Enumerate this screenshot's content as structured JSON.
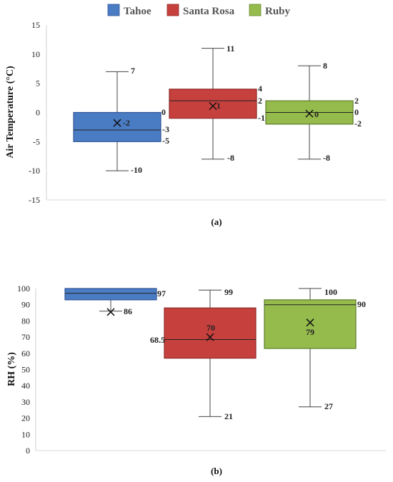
{
  "legend": [
    {
      "label": "Tahoe",
      "color": "#4a7cc4"
    },
    {
      "label": "Santa Rosa",
      "color": "#c6403d"
    },
    {
      "label": "Ruby",
      "color": "#96bb4d"
    }
  ],
  "chart_data": [
    {
      "type": "box",
      "caption": "(a)",
      "ylabel": "Air Temperature (°C)",
      "ylim": [
        -15,
        15
      ],
      "yticks": [
        -15,
        -10,
        -5,
        0,
        5,
        10,
        15
      ],
      "grid": false,
      "categories": [
        "Tahoe",
        "Santa Rosa",
        "Ruby"
      ],
      "series": [
        {
          "name": "Tahoe",
          "min": -10,
          "q1": -5,
          "median": -3,
          "q3": 0,
          "max": 7,
          "mean": -1.8,
          "labels": {
            "min": "-10",
            "q1": "-5",
            "median": "-3",
            "q3": "0",
            "max": "7",
            "mean": "-2"
          }
        },
        {
          "name": "Santa Rosa",
          "min": -8,
          "q1": -1,
          "median": 2,
          "q3": 4,
          "max": 11,
          "mean": 1.1,
          "labels": {
            "min": "-8",
            "q1": "-1",
            "median": "2",
            "q3": "4",
            "max": "11",
            "mean": "1"
          }
        },
        {
          "name": "Ruby",
          "min": -8,
          "q1": -2,
          "median": 0,
          "q3": 2,
          "max": 8,
          "mean": -0.2,
          "labels": {
            "min": "-8",
            "q1": "-2",
            "median": "0",
            "q3": "2",
            "max": "8",
            "mean": "0"
          }
        }
      ]
    },
    {
      "type": "box",
      "caption": "(b)",
      "ylabel": "RH (%)",
      "ylim": [
        0,
        100
      ],
      "yticks": [
        0,
        10,
        20,
        30,
        40,
        50,
        60,
        70,
        80,
        90,
        100
      ],
      "grid": false,
      "categories": [
        "Tahoe",
        "Santa Rosa",
        "Ruby"
      ],
      "series": [
        {
          "name": "Tahoe",
          "min": 86,
          "q1": 93,
          "median": 97,
          "q3": 100,
          "max": 100,
          "mean": 85.5,
          "labels": {
            "min": "86",
            "median": "97"
          }
        },
        {
          "name": "Santa Rosa",
          "min": 21,
          "q1": 57,
          "median": 68.5,
          "q3": 88,
          "max": 99,
          "mean": 70,
          "labels": {
            "min": "21",
            "median": "68.5",
            "max": "99",
            "mean": "70"
          }
        },
        {
          "name": "Ruby",
          "min": 27,
          "q1": 63,
          "median": 90,
          "q3": 93,
          "max": 100,
          "mean": 79,
          "labels": {
            "min": "27",
            "median": "90",
            "max": "100",
            "mean": "79"
          }
        }
      ]
    }
  ]
}
